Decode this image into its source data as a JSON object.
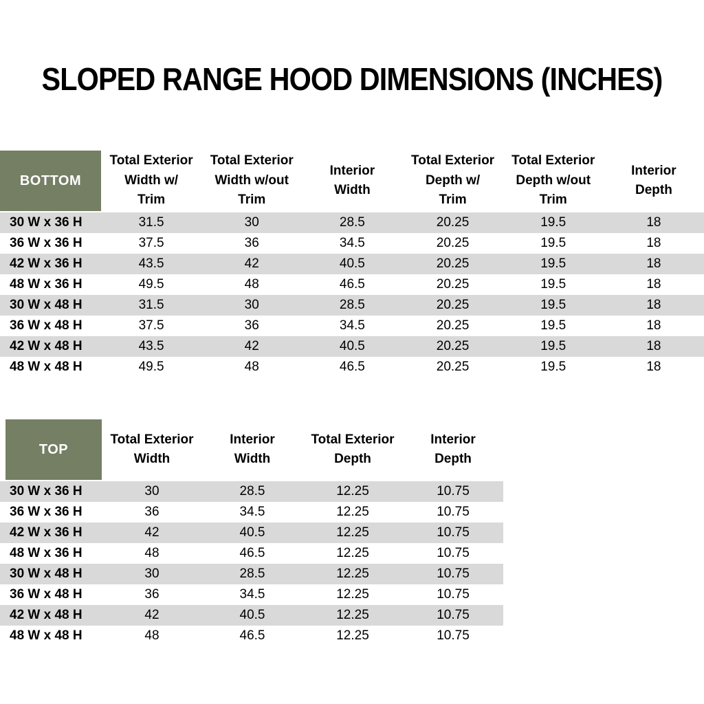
{
  "title": "SLOPED RANGE HOOD DIMENSIONS (INCHES)",
  "colors": {
    "header_green": "#757F64",
    "stripe_gray": "#D9D9D9",
    "background": "#FFFFFF",
    "text": "#000000",
    "header_label_text": "#FFFFFF"
  },
  "bottom_table": {
    "label": "BOTTOM",
    "columns": [
      "Total Exterior\nWidth w/\nTrim",
      "Total Exterior\nWidth w/out\nTrim",
      "Interior\nWidth",
      "Total Exterior\nDepth w/\nTrim",
      "Total Exterior\nDepth w/out\nTrim",
      "Interior\nDepth"
    ],
    "rows": [
      {
        "label": "30 W x 36 H",
        "values": [
          "31.5",
          "30",
          "28.5",
          "20.25",
          "19.5",
          "18"
        ]
      },
      {
        "label": "36 W x 36 H",
        "values": [
          "37.5",
          "36",
          "34.5",
          "20.25",
          "19.5",
          "18"
        ]
      },
      {
        "label": "42 W x 36 H",
        "values": [
          "43.5",
          "42",
          "40.5",
          "20.25",
          "19.5",
          "18"
        ]
      },
      {
        "label": "48 W x 36 H",
        "values": [
          "49.5",
          "48",
          "46.5",
          "20.25",
          "19.5",
          "18"
        ]
      },
      {
        "label": "30 W x 48 H",
        "values": [
          "31.5",
          "30",
          "28.5",
          "20.25",
          "19.5",
          "18"
        ]
      },
      {
        "label": "36 W x 48 H",
        "values": [
          "37.5",
          "36",
          "34.5",
          "20.25",
          "19.5",
          "18"
        ]
      },
      {
        "label": "42 W x 48 H",
        "values": [
          "43.5",
          "42",
          "40.5",
          "20.25",
          "19.5",
          "18"
        ]
      },
      {
        "label": "48 W x 48 H",
        "values": [
          "49.5",
          "48",
          "46.5",
          "20.25",
          "19.5",
          "18"
        ]
      }
    ]
  },
  "top_table": {
    "label": "TOP",
    "columns": [
      "Total Exterior\nWidth",
      "Interior\nWidth",
      "Total Exterior\nDepth",
      "Interior\nDepth"
    ],
    "rows": [
      {
        "label": "30 W x 36 H",
        "values": [
          "30",
          "28.5",
          "12.25",
          "10.75"
        ]
      },
      {
        "label": "36 W x 36 H",
        "values": [
          "36",
          "34.5",
          "12.25",
          "10.75"
        ]
      },
      {
        "label": "42 W x 36 H",
        "values": [
          "42",
          "40.5",
          "12.25",
          "10.75"
        ]
      },
      {
        "label": "48 W x 36 H",
        "values": [
          "48",
          "46.5",
          "12.25",
          "10.75"
        ]
      },
      {
        "label": "30 W x 48 H",
        "values": [
          "30",
          "28.5",
          "12.25",
          "10.75"
        ]
      },
      {
        "label": "36 W x 48 H",
        "values": [
          "36",
          "34.5",
          "12.25",
          "10.75"
        ]
      },
      {
        "label": "42 W x 48 H",
        "values": [
          "42",
          "40.5",
          "12.25",
          "10.75"
        ]
      },
      {
        "label": "48 W x 48 H",
        "values": [
          "48",
          "46.5",
          "12.25",
          "10.75"
        ]
      }
    ]
  }
}
